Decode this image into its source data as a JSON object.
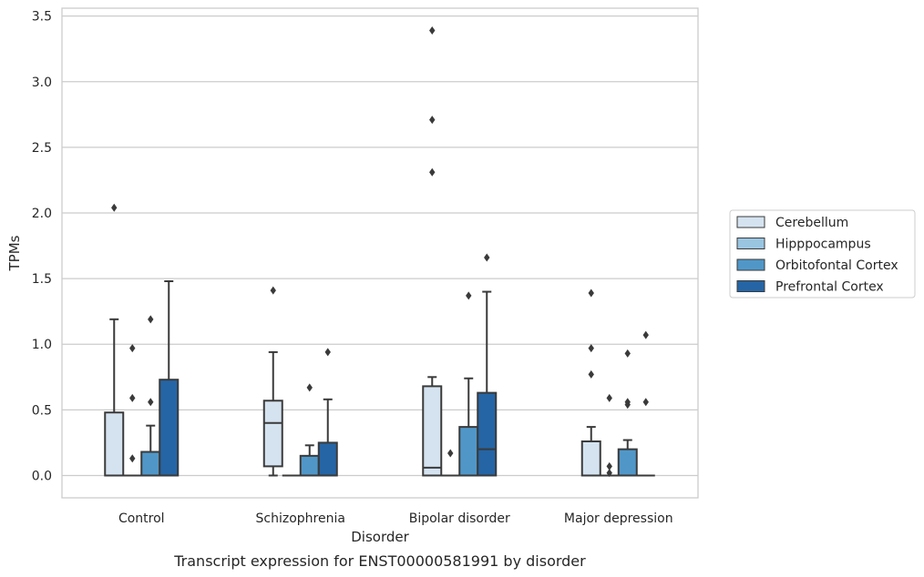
{
  "chart_data": {
    "type": "box",
    "xlabel": "Disorder",
    "ylabel": "TPMs",
    "caption": "Transcript expression for ENST00000581991 by disorder",
    "ylim": [
      -0.17,
      3.56
    ],
    "yticks": [
      "0.0",
      "0.5",
      "1.0",
      "1.5",
      "2.0",
      "2.5",
      "3.0",
      "3.5"
    ],
    "grid": "horizontal",
    "legend_position": "right",
    "categories": [
      "Control",
      "Schizophrenia",
      "Bipolar disorder",
      "Major depression"
    ],
    "series": [
      {
        "name": "Cerebellum",
        "color": "#d5e3f0",
        "boxes": [
          {
            "q1": 0,
            "median": 0,
            "q3": 0.48,
            "whisker_low": 0,
            "whisker_high": 1.19,
            "outliers": [
              2.04
            ]
          },
          {
            "q1": 0.07,
            "median": 0.4,
            "q3": 0.57,
            "whisker_low": 0,
            "whisker_high": 0.94,
            "outliers": [
              1.41
            ]
          },
          {
            "q1": 0,
            "median": 0.06,
            "q3": 0.68,
            "whisker_low": 0,
            "whisker_high": 0.75,
            "outliers": [
              2.31,
              2.71,
              3.39
            ]
          },
          {
            "q1": 0,
            "median": 0,
            "q3": 0.26,
            "whisker_low": 0,
            "whisker_high": 0.37,
            "outliers": [
              0.77,
              0.97,
              1.39
            ]
          }
        ]
      },
      {
        "name": "Hipppocampus",
        "color": "#9ac5e0",
        "boxes": [
          {
            "q1": 0,
            "median": 0,
            "q3": 0,
            "whisker_low": 0,
            "whisker_high": 0,
            "outliers": [
              0.13,
              0.59,
              0.97
            ]
          },
          {
            "q1": 0,
            "median": 0,
            "q3": 0,
            "whisker_low": 0,
            "whisker_high": 0,
            "outliers": []
          },
          {
            "q1": 0,
            "median": 0,
            "q3": 0,
            "whisker_low": 0,
            "whisker_high": 0,
            "outliers": [
              0.17
            ]
          },
          {
            "q1": 0,
            "median": 0,
            "q3": 0,
            "whisker_low": 0,
            "whisker_high": 0,
            "outliers": [
              0.02,
              0.07,
              0.59
            ]
          }
        ]
      },
      {
        "name": "Orbitofontal Cortex",
        "color": "#5097c8",
        "boxes": [
          {
            "q1": 0,
            "median": 0,
            "q3": 0.18,
            "whisker_low": 0,
            "whisker_high": 0.38,
            "outliers": [
              0.56,
              1.19
            ]
          },
          {
            "q1": 0,
            "median": 0,
            "q3": 0.15,
            "whisker_low": 0,
            "whisker_high": 0.23,
            "outliers": [
              0.67
            ]
          },
          {
            "q1": 0,
            "median": 0,
            "q3": 0.37,
            "whisker_low": 0,
            "whisker_high": 0.74,
            "outliers": [
              1.37
            ]
          },
          {
            "q1": 0,
            "median": 0,
            "q3": 0.2,
            "whisker_low": 0,
            "whisker_high": 0.27,
            "outliers": [
              0.54,
              0.56,
              0.93
            ]
          }
        ]
      },
      {
        "name": "Prefrontal Cortex",
        "color": "#2565a6",
        "boxes": [
          {
            "q1": 0,
            "median": 0,
            "q3": 0.73,
            "whisker_low": 0,
            "whisker_high": 1.48,
            "outliers": []
          },
          {
            "q1": 0,
            "median": 0,
            "q3": 0.25,
            "whisker_low": 0,
            "whisker_high": 0.58,
            "outliers": [
              0.94
            ]
          },
          {
            "q1": 0,
            "median": 0.2,
            "q3": 0.63,
            "whisker_low": 0,
            "whisker_high": 1.4,
            "outliers": [
              1.66
            ]
          },
          {
            "q1": 0,
            "median": 0,
            "q3": 0,
            "whisker_low": 0,
            "whisker_high": 0,
            "outliers": [
              0.56,
              1.07
            ]
          }
        ]
      }
    ]
  }
}
